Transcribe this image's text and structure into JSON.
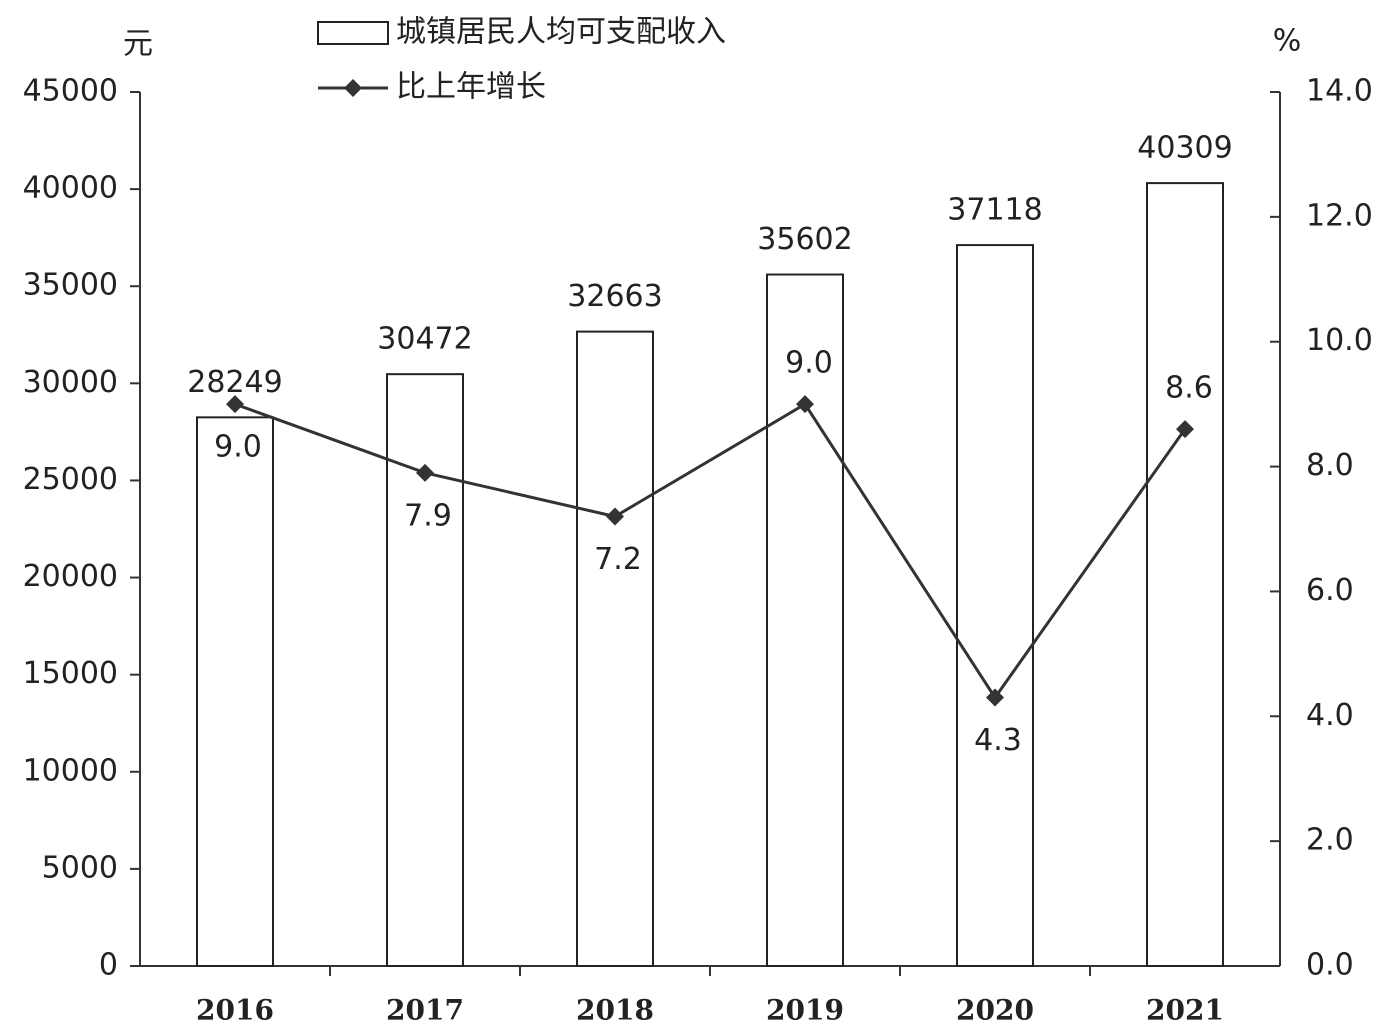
{
  "chart_data": {
    "type": "bar-line",
    "y_label": "元",
    "y2_label": "%",
    "categories": [
      "2016",
      "2017",
      "2018",
      "2019",
      "2020",
      "2021"
    ],
    "series": [
      {
        "name": "城镇居民人均可支配收入",
        "type": "bar",
        "color": "#ffffff",
        "values": [
          28249,
          30472,
          32663,
          35602,
          37118,
          40309
        ]
      },
      {
        "name": "比上年增长",
        "type": "line",
        "axis": "y2",
        "color": "#333333",
        "values": [
          9.0,
          7.9,
          7.2,
          9.0,
          4.3,
          8.6
        ],
        "value_labels": [
          "9.0",
          "7.9",
          "7.2",
          "9.0",
          "4.3",
          "8.6"
        ]
      }
    ],
    "ylim": [
      0,
      45000
    ],
    "yticks": [
      0,
      5000,
      10000,
      15000,
      20000,
      25000,
      30000,
      35000,
      40000,
      45000
    ],
    "y2lim": [
      0,
      14
    ],
    "y2ticks": [
      {
        "value": 0,
        "label": "0.0"
      },
      {
        "value": 2,
        "label": "2.0"
      },
      {
        "value": 4,
        "label": "4.0"
      },
      {
        "value": 6,
        "label": "6.0"
      },
      {
        "value": 8,
        "label": "8.0"
      },
      {
        "value": 10,
        "label": "10.0"
      },
      {
        "value": 12,
        "label": "12.0"
      },
      {
        "value": 14,
        "label": "14.0"
      }
    ],
    "legend": "top"
  }
}
